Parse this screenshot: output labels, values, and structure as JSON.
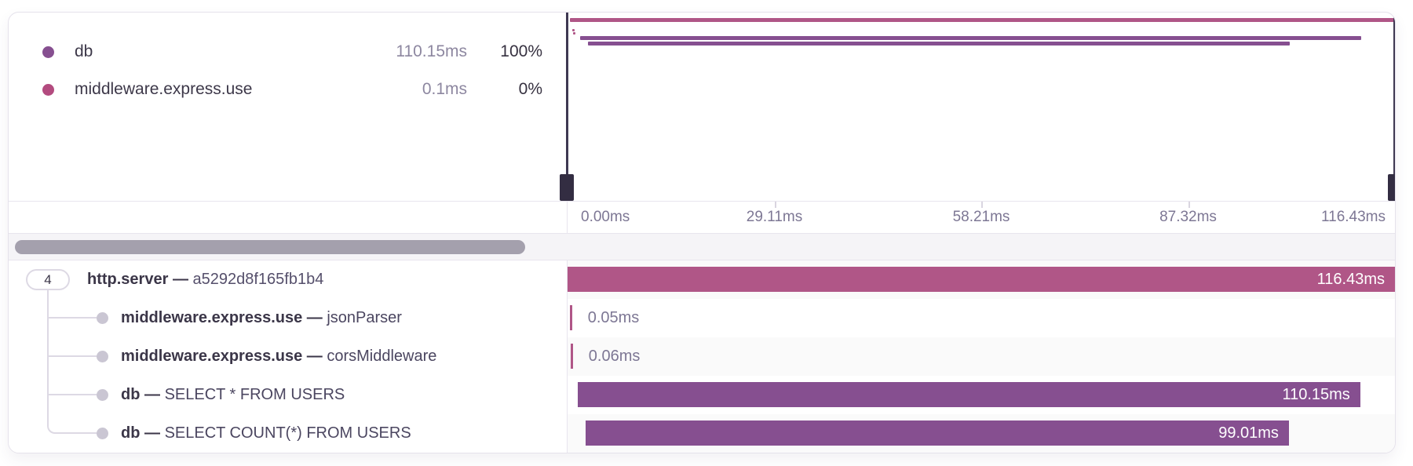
{
  "ui": {
    "separator": "—"
  },
  "chart_data": {
    "type": "bar",
    "variant": "trace-waterfall-gantt",
    "x_unit": "ms",
    "x_range": [
      0,
      116.43
    ],
    "x_ticks": [
      "0.00ms",
      "29.11ms",
      "58.21ms",
      "87.32ms",
      "116.43ms"
    ],
    "grid": false,
    "legend_position": "top-left",
    "legend": [
      {
        "name": "db",
        "duration": "110.15ms",
        "percent": "100%",
        "color": "#864f90"
      },
      {
        "name": "middleware.express.use",
        "duration": "0.1ms",
        "percent": "0%",
        "color": "#b34b7f"
      }
    ],
    "rows": [
      {
        "badge": "4",
        "name": "http.server",
        "descriptor": "a5292d8f165fb1b4",
        "duration_label": "116.43ms",
        "start_ms": 0,
        "duration_ms": 116.43,
        "color": "#b05687",
        "label_placement": "inside",
        "depth": 0
      },
      {
        "name": "middleware.express.use",
        "descriptor": "jsonParser",
        "duration_label": "0.05ms",
        "start_ms": 0.3,
        "duration_ms": 0.05,
        "color": "#b05687",
        "label_placement": "outside",
        "depth": 1
      },
      {
        "name": "middleware.express.use",
        "descriptor": "corsMiddleware",
        "duration_label": "0.06ms",
        "start_ms": 0.42,
        "duration_ms": 0.06,
        "color": "#b05687",
        "label_placement": "outside",
        "depth": 1
      },
      {
        "name": "db",
        "descriptor": "SELECT * FROM USERS",
        "duration_label": "110.15ms",
        "start_ms": 1.4,
        "duration_ms": 110.15,
        "color": "#864f90",
        "label_placement": "inside",
        "depth": 1
      },
      {
        "name": "db",
        "descriptor": "SELECT COUNT(*) FROM USERS",
        "duration_label": "99.01ms",
        "start_ms": 2.5,
        "duration_ms": 99.01,
        "color": "#864f90",
        "label_placement": "inside",
        "depth": 1
      }
    ]
  }
}
